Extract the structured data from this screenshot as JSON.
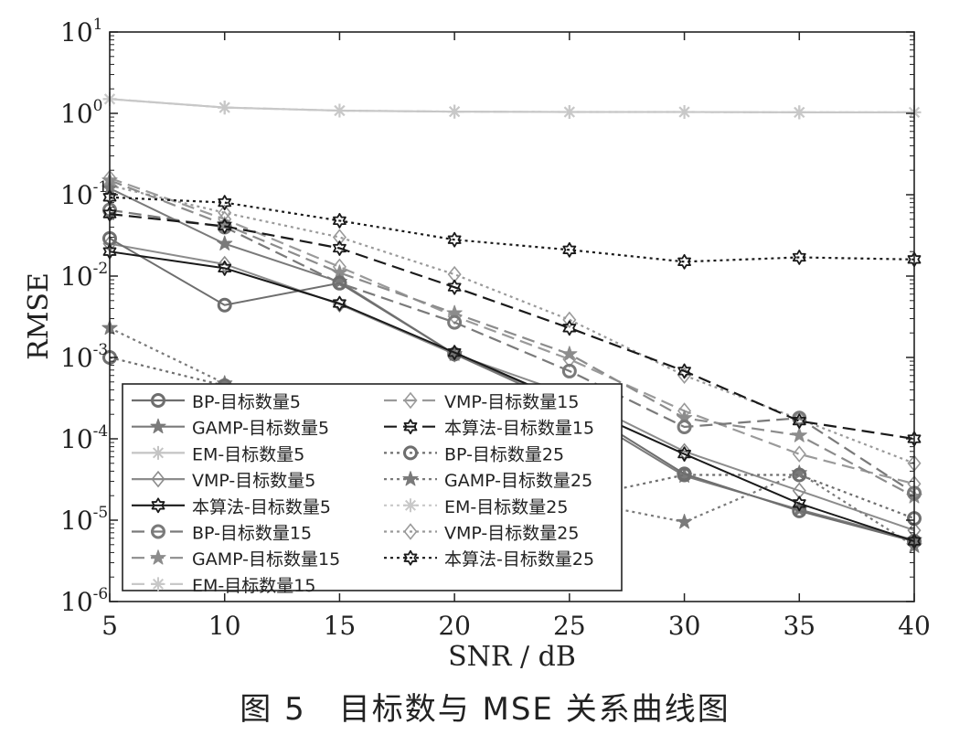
{
  "caption": "图 5　目标数与 MSE 关系曲线图",
  "chart_data": {
    "type": "line",
    "xlabel": "SNR / dB",
    "ylabel": "RMSE",
    "xlim": [
      5,
      40
    ],
    "ylim": [
      1e-06,
      10
    ],
    "yscale": "log",
    "x": [
      5,
      10,
      15,
      20,
      25,
      30,
      35,
      40
    ],
    "x_tick_labels": [
      "5",
      "10",
      "15",
      "20",
      "25",
      "30",
      "35",
      "40"
    ],
    "y_ticks": [
      {
        "value": 10,
        "base": "10",
        "exp": "1"
      },
      {
        "value": 1,
        "base": "10",
        "exp": "0"
      },
      {
        "value": 0.1,
        "base": "10",
        "exp": "-1"
      },
      {
        "value": 0.01,
        "base": "10",
        "exp": "-2"
      },
      {
        "value": 0.001,
        "base": "10",
        "exp": "-3"
      },
      {
        "value": 0.0001,
        "base": "10",
        "exp": "-4"
      },
      {
        "value": 1e-05,
        "base": "10",
        "exp": "-5"
      },
      {
        "value": 1e-06,
        "base": "10",
        "exp": "-6"
      }
    ],
    "grid": false,
    "legend_position": "bottom-left, two columns",
    "series": [
      {
        "name": "BP-目标数量5",
        "marker": "circle",
        "dash": "solid",
        "color": "#6e6e6e",
        "values": [
          0.029,
          0.0044,
          0.0082,
          0.0011,
          0.00028,
          3.7e-05,
          1.3e-05,
          5.5e-06
        ]
      },
      {
        "name": "GAMP-目标数量5",
        "marker": "star6",
        "dash": "solid",
        "color": "#7a7a7a",
        "values": [
          0.12,
          0.025,
          0.0085,
          0.0011,
          0.00025,
          3.5e-05,
          1.35e-05,
          5.7e-06
        ]
      },
      {
        "name": "EM-目标数量5",
        "marker": "asterisk",
        "dash": "solid",
        "color": "#c4c4c4",
        "values": [
          1.5,
          1.18,
          1.08,
          1.05,
          1.04,
          1.04,
          1.03,
          1.03
        ]
      },
      {
        "name": "VMP-目标数量5",
        "marker": "diamond",
        "dash": "solid",
        "color": "#8c8c8c",
        "values": [
          0.025,
          0.014,
          0.0045,
          0.0011,
          0.00035,
          7e-05,
          2.3e-05,
          7.5e-06
        ]
      },
      {
        "name": "本算法-目标数量5",
        "marker": "hexagram",
        "dash": "solid",
        "color": "#1a1a1a",
        "values": [
          0.02,
          0.0125,
          0.0046,
          0.00115,
          0.00028,
          6.5e-05,
          1.6e-05,
          5.5e-06
        ]
      },
      {
        "name": "BP-目标数量15",
        "marker": "circle",
        "dash": "dashed",
        "color": "#7a7a7a",
        "values": [
          0.065,
          0.04,
          0.0082,
          0.0027,
          0.00068,
          0.00014,
          0.00018,
          2.15e-05
        ]
      },
      {
        "name": "GAMP-目标数量15",
        "marker": "star6",
        "dash": "dashed",
        "color": "#8c8c8c",
        "values": [
          0.15,
          0.043,
          0.011,
          0.0035,
          0.0011,
          0.00018,
          0.00011,
          1.95e-05
        ]
      },
      {
        "name": "EM-目标数量15",
        "marker": "asterisk",
        "dash": "dashed",
        "color": "#c8c8c8",
        "values": [
          1.5,
          1.18,
          1.08,
          1.05,
          1.04,
          1.04,
          1.03,
          1.03
        ]
      },
      {
        "name": "VMP-目标数量15",
        "marker": "diamond",
        "dash": "dashed",
        "color": "#9a9a9a",
        "values": [
          0.16,
          0.05,
          0.013,
          0.0032,
          0.00095,
          0.00022,
          6.5e-05,
          2.8e-05
        ]
      },
      {
        "name": "本算法-目标数量15",
        "marker": "hexagram",
        "dash": "dashed",
        "color": "#1a1a1a",
        "values": [
          0.058,
          0.041,
          0.022,
          0.0073,
          0.0023,
          0.00068,
          0.000165,
          0.0001
        ]
      },
      {
        "name": "BP-目标数量25",
        "marker": "circle",
        "dash": "dotted",
        "color": "#6e6e6e",
        "values": [
          0.001,
          0.00045,
          0.00013,
          4.5e-05,
          1.8e-05,
          3.6e-05,
          3.6e-05,
          1.05e-05
        ]
      },
      {
        "name": "GAMP-目标数量25",
        "marker": "star6",
        "dash": "dotted",
        "color": "#7a7a7a",
        "values": [
          0.0023,
          0.00048,
          0.00011,
          3.5e-05,
          1.8e-05,
          9.5e-06,
          3.8e-05,
          4.8e-06
        ]
      },
      {
        "name": "EM-目标数量25",
        "marker": "asterisk",
        "dash": "dotted",
        "color": "#c8c8c8",
        "values": [
          1.5,
          1.18,
          1.08,
          1.05,
          1.04,
          1.04,
          1.03,
          1.03
        ]
      },
      {
        "name": "VMP-目标数量25",
        "marker": "diamond",
        "dash": "dotted",
        "color": "#9a9a9a",
        "values": [
          0.13,
          0.06,
          0.03,
          0.0105,
          0.0029,
          0.0006,
          0.000175,
          5e-05
        ]
      },
      {
        "name": "本算法-目标数量25",
        "marker": "hexagram",
        "dash": "dotted",
        "color": "#1a1a1a",
        "values": [
          0.093,
          0.08,
          0.048,
          0.028,
          0.021,
          0.015,
          0.017,
          0.016
        ]
      }
    ]
  }
}
